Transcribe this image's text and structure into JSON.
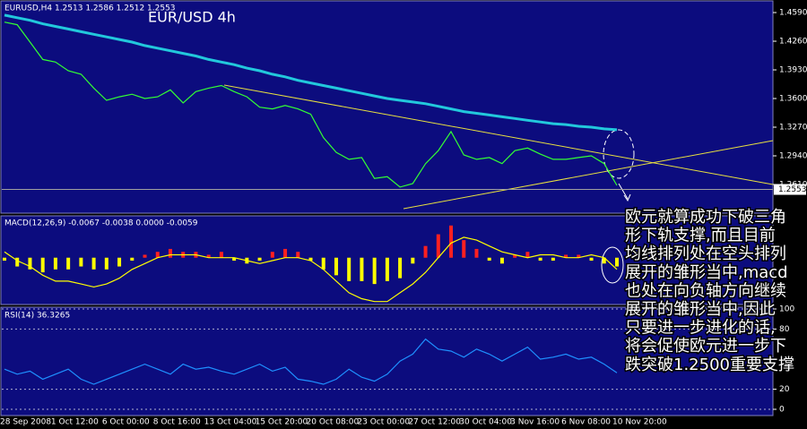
{
  "chart_data": [
    {
      "type": "line",
      "title": "EUR/USD 4h",
      "subtitle": "EURUSD,H4 1.2513 1.2586 1.2512 1.2553",
      "categories": [
        "28 Sep 2008",
        null,
        null,
        null,
        "1 Oct 12:00",
        null,
        null,
        null,
        "6 Oct 00:00",
        null,
        null,
        null,
        "8 Oct 16:00",
        null,
        null,
        null,
        "13 Oct 04:00",
        null,
        null,
        null,
        "15 Oct 20:00",
        null,
        null,
        null,
        "20 Oct 08:00",
        null,
        null,
        null,
        "23 Oct 00:00",
        null,
        null,
        null,
        "27 Oct 12:00",
        null,
        null,
        null,
        "30 Oct 04:00",
        null,
        null,
        null,
        "3 Nov 16:00",
        null,
        null,
        null,
        "6 Nov 08:00",
        null,
        null,
        null,
        "10 Nov 20:00"
      ],
      "series": [
        {
          "color": "#33ff33",
          "values": [
            1.448,
            1.445,
            1.425,
            1.405,
            1.402,
            1.392,
            1.388,
            1.372,
            1.358,
            1.362,
            1.365,
            1.36,
            1.362,
            1.37,
            1.355,
            1.368,
            1.372,
            1.375,
            1.368,
            1.362,
            1.35,
            1.348,
            1.352,
            1.348,
            1.342,
            1.315,
            1.298,
            1.29,
            1.292,
            1.268,
            1.27,
            1.258,
            1.262,
            1.285,
            1.3,
            1.322,
            1.295,
            1.29,
            1.292,
            1.285,
            1.3,
            1.303,
            1.296,
            1.29,
            1.29,
            1.292,
            1.294,
            1.285,
            1.26
          ]
        },
        {
          "color": "#22c8dc",
          "values": [
            1.456,
            1.453,
            1.45,
            1.446,
            1.443,
            1.44,
            1.437,
            1.434,
            1.431,
            1.428,
            1.425,
            1.421,
            1.418,
            1.415,
            1.412,
            1.409,
            1.405,
            1.402,
            1.399,
            1.395,
            1.392,
            1.388,
            1.385,
            1.381,
            1.378,
            1.375,
            1.372,
            1.369,
            1.366,
            1.363,
            1.36,
            1.358,
            1.356,
            1.354,
            1.351,
            1.348,
            1.345,
            1.343,
            1.341,
            1.339,
            1.337,
            1.335,
            1.333,
            1.331,
            1.33,
            1.328,
            1.327,
            1.325,
            1.324
          ]
        }
      ],
      "ylim": [
        1.228,
        1.4714
      ],
      "yticks": [
        {
          "value": 1.459,
          "label": "1.4590"
        },
        {
          "value": 1.426,
          "label": "1.4260"
        },
        {
          "value": 1.393,
          "label": "1.3930"
        },
        {
          "value": 1.36,
          "label": "1.3600"
        },
        {
          "value": 1.327,
          "label": "1.3270"
        },
        {
          "value": 1.294,
          "label": "1.2940"
        },
        {
          "value": 1.261,
          "label": "1.2610"
        }
      ],
      "last_price": {
        "value": 1.2553,
        "label": "1.2553"
      },
      "annotation": [
        "欧元就算成功下破三角",
        "形下轨支撑,而且目前",
        "均线排列处在空头排列",
        "展开的雏形当中,macd",
        "也处在向负轴方向继续",
        "展开的雏形当中,因此",
        "只要进一步进化的话,",
        "将会促使欧元进一步下",
        "跌突破1.2500重要支撑"
      ]
    },
    {
      "type": "bar",
      "title": "MACD(12,26,9) -0.0067 -0.0038 0.0000 -0.0059",
      "values": [
        -0.001,
        -0.003,
        -0.004,
        -0.005,
        -0.004,
        -0.004,
        -0.003,
        -0.004,
        -0.004,
        -0.003,
        -0.001,
        0.001,
        0.002,
        0.003,
        0.002,
        0.002,
        0.001,
        0.002,
        -0.001,
        -0.002,
        -0.001,
        0.002,
        0.003,
        0.002,
        -0.001,
        -0.004,
        -0.006,
        -0.008,
        -0.008,
        -0.009,
        -0.008,
        -0.007,
        -0.002,
        0.004,
        0.008,
        0.011,
        0.006,
        0.003,
        -0.001,
        -0.002,
        0.001,
        0.002,
        -0.001,
        -0.001,
        0.001,
        0.001,
        -0.001,
        -0.002,
        -0.003
      ],
      "color": "#ffff00",
      "up_color": "#ff2020",
      "series": [
        {
          "color": "#ffff00",
          "values": [
            0.002,
            -0.001,
            -0.003,
            -0.006,
            -0.008,
            -0.008,
            -0.009,
            -0.01,
            -0.009,
            -0.007,
            -0.004,
            -0.002,
            0.0,
            0.001,
            0.001,
            0.001,
            0.0,
            0.0,
            0.0,
            -0.001,
            -0.002,
            -0.001,
            0.0,
            0.0,
            -0.001,
            -0.004,
            -0.008,
            -0.012,
            -0.014,
            -0.015,
            -0.015,
            -0.012,
            -0.009,
            -0.005,
            0.0,
            0.005,
            0.007,
            0.006,
            0.004,
            0.002,
            0.001,
            0.0,
            0.001,
            0.001,
            0.0,
            0.0,
            0.001,
            0.0,
            -0.004
          ]
        }
      ],
      "ylim": [
        -0.016,
        0.014
      ]
    },
    {
      "type": "line",
      "title": "RSI(14) 36.3265",
      "series": [
        {
          "color": "#1e90ff",
          "values": [
            40,
            35,
            38,
            30,
            35,
            40,
            30,
            25,
            30,
            35,
            40,
            45,
            40,
            35,
            45,
            40,
            42,
            38,
            35,
            40,
            45,
            38,
            42,
            30,
            28,
            25,
            30,
            40,
            32,
            28,
            35,
            48,
            55,
            70,
            60,
            58,
            52,
            60,
            55,
            48,
            55,
            62,
            50,
            52,
            55,
            50,
            52,
            45,
            36.3265
          ]
        }
      ],
      "ylim": [
        0,
        100
      ],
      "yticks": [
        0,
        20,
        80,
        100
      ],
      "grid": true
    }
  ]
}
